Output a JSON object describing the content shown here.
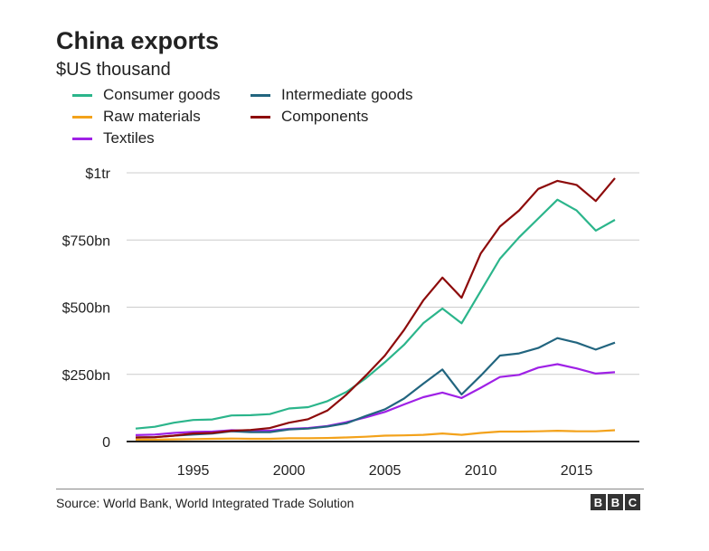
{
  "header": {
    "title": "China exports",
    "subtitle": "$US thousand"
  },
  "footer": {
    "source": "Source:  World Bank, World Integrated Trade Solution",
    "logo_letters": [
      "B",
      "B",
      "C"
    ]
  },
  "chart_data": {
    "type": "line",
    "title": "China exports",
    "subtitle": "$US thousand",
    "xlim": [
      1992,
      2017
    ],
    "ylim": [
      0,
      1000
    ],
    "grid": true,
    "legend_placement": "top-left",
    "x_ticks": [
      {
        "value": 1995,
        "label": "1995"
      },
      {
        "value": 2000,
        "label": "2000"
      },
      {
        "value": 2005,
        "label": "2005"
      },
      {
        "value": 2010,
        "label": "2010"
      },
      {
        "value": 2015,
        "label": "2015"
      }
    ],
    "y_ticks": [
      {
        "value": 0,
        "label": "0"
      },
      {
        "value": 250,
        "label": "$250bn"
      },
      {
        "value": 500,
        "label": "$500bn"
      },
      {
        "value": 750,
        "label": "$750bn"
      },
      {
        "value": 1000,
        "label": "$1tr"
      }
    ],
    "x": [
      1992,
      1993,
      1994,
      1995,
      1996,
      1997,
      1998,
      1999,
      2000,
      2001,
      2002,
      2003,
      2004,
      2005,
      2006,
      2007,
      2008,
      2009,
      2010,
      2011,
      2012,
      2013,
      2014,
      2015,
      2016,
      2017
    ],
    "series": [
      {
        "name": "Consumer goods",
        "color": "#2bb58b",
        "values": [
          48,
          55,
          70,
          80,
          82,
          97,
          98,
          102,
          123,
          128,
          150,
          185,
          235,
          295,
          360,
          440,
          495,
          440,
          560,
          680,
          760,
          830,
          900,
          860,
          785,
          825
        ]
      },
      {
        "name": "Raw materials",
        "color": "#f3a21b",
        "values": [
          7,
          7,
          8,
          9,
          10,
          11,
          10,
          10,
          12,
          12,
          13,
          15,
          18,
          22,
          23,
          25,
          30,
          25,
          32,
          37,
          37,
          38,
          40,
          38,
          38,
          42
        ]
      },
      {
        "name": "Textiles",
        "color": "#9f21e6",
        "values": [
          24,
          26,
          32,
          36,
          37,
          42,
          40,
          40,
          47,
          50,
          58,
          72,
          90,
          110,
          138,
          165,
          182,
          162,
          200,
          240,
          248,
          275,
          288,
          272,
          253,
          258
        ]
      },
      {
        "name": "Intermediate goods",
        "color": "#22657f",
        "values": [
          15,
          16,
          22,
          26,
          30,
          38,
          35,
          35,
          45,
          48,
          56,
          68,
          95,
          120,
          160,
          215,
          268,
          175,
          245,
          320,
          328,
          348,
          385,
          368,
          342,
          368
        ]
      },
      {
        "name": "Components",
        "color": "#8d0b0b",
        "values": [
          15,
          16,
          22,
          30,
          32,
          40,
          43,
          50,
          70,
          83,
          115,
          175,
          245,
          320,
          415,
          525,
          610,
          535,
          700,
          800,
          860,
          940,
          970,
          955,
          895,
          980
        ]
      }
    ]
  }
}
